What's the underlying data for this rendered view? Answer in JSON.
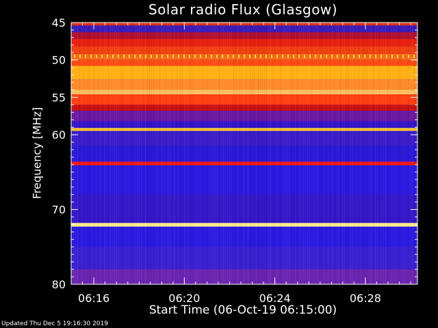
{
  "title": "Solar radio Flux (Glasgow)",
  "footer": "Updated Thu Dec  5 19:16:30 2019",
  "chart_data": {
    "type": "heatmap",
    "title": "Solar radio Flux (Glasgow)",
    "xlabel": "Start Time (06-Oct-19 06:15:00)",
    "ylabel": "Frequency [MHz]",
    "xlim_minutes_after_06_15": [
      0,
      15.3
    ],
    "ylim": [
      45,
      80
    ],
    "x_ticks": [
      {
        "label": "06:16",
        "minutes": 1
      },
      {
        "label": "06:20",
        "minutes": 5
      },
      {
        "label": "06:24",
        "minutes": 9
      },
      {
        "label": "06:28",
        "minutes": 13
      }
    ],
    "y_ticks": [
      45,
      50,
      55,
      60,
      70,
      80
    ],
    "bands": [
      {
        "freq_from": 45.0,
        "freq_to": 45.4,
        "color": "#e03018"
      },
      {
        "freq_from": 45.4,
        "freq_to": 46.3,
        "color": "#3a1bb8"
      },
      {
        "freq_from": 46.3,
        "freq_to": 47.2,
        "color": "#b01030"
      },
      {
        "freq_from": 47.2,
        "freq_to": 48.2,
        "color": "#e82010"
      },
      {
        "freq_from": 48.2,
        "freq_to": 49.2,
        "color": "#f04010"
      },
      {
        "freq_from": 49.2,
        "freq_to": 50.0,
        "color": "#f86a10"
      },
      {
        "freq_from": 50.0,
        "freq_to": 50.8,
        "color": "#ff4a12"
      },
      {
        "freq_from": 50.8,
        "freq_to": 52.6,
        "color": "#ffb014"
      },
      {
        "freq_from": 52.6,
        "freq_to": 54.0,
        "color": "#ff8a2a"
      },
      {
        "freq_from": 54.0,
        "freq_to": 54.6,
        "color": "#ffc060"
      },
      {
        "freq_from": 54.6,
        "freq_to": 56.0,
        "color": "#ff4010"
      },
      {
        "freq_from": 56.0,
        "freq_to": 56.8,
        "color": "#c81010"
      },
      {
        "freq_from": 56.8,
        "freq_to": 58.2,
        "color": "#6a18a0"
      },
      {
        "freq_from": 58.2,
        "freq_to": 59.1,
        "color": "#3414c8"
      },
      {
        "freq_from": 59.1,
        "freq_to": 59.5,
        "color": "#ffc830"
      },
      {
        "freq_from": 59.5,
        "freq_to": 61.5,
        "color": "#3a1cc8"
      },
      {
        "freq_from": 61.5,
        "freq_to": 63.6,
        "color": "#2a18d8"
      },
      {
        "freq_from": 63.6,
        "freq_to": 64.1,
        "color": "#f01818"
      },
      {
        "freq_from": 64.1,
        "freq_to": 68.0,
        "color": "#2a1ae0"
      },
      {
        "freq_from": 68.0,
        "freq_to": 71.8,
        "color": "#3418c8"
      },
      {
        "freq_from": 71.8,
        "freq_to": 72.3,
        "color": "#ffee88"
      },
      {
        "freq_from": 72.3,
        "freq_to": 75.0,
        "color": "#2a1ae0"
      },
      {
        "freq_from": 75.0,
        "freq_to": 78.0,
        "color": "#3a20d0"
      },
      {
        "freq_from": 78.0,
        "freq_to": 80.0,
        "color": "#6a24b0"
      }
    ],
    "colors": {
      "background": "#000000",
      "plot_bg": "#2a1ae0",
      "axis": "#ffffff"
    }
  }
}
